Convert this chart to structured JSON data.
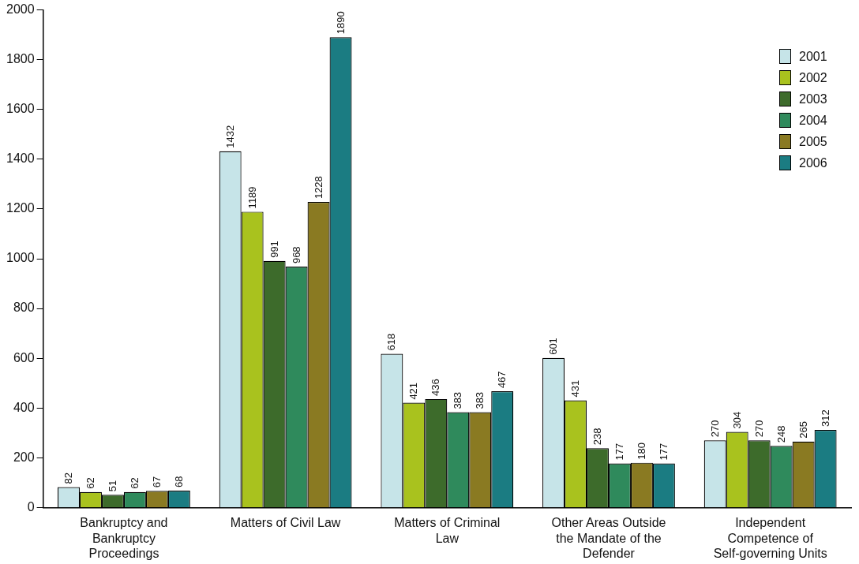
{
  "chart_data": {
    "type": "bar",
    "categories": [
      "Bankruptcy and Bankruptcy Proceedings",
      "Matters of Civil Law",
      "Matters of Criminal Law",
      "Other Areas Outside the Mandate of the Defender",
      "Independent Competence of Self-governing Units"
    ],
    "series": [
      {
        "name": "2001",
        "color": "#c6e4e8",
        "values": [
          82,
          1432,
          618,
          601,
          270
        ]
      },
      {
        "name": "2002",
        "color": "#a9c21e",
        "values": [
          62,
          1189,
          421,
          431,
          304
        ]
      },
      {
        "name": "2003",
        "color": "#3d6b2b",
        "values": [
          51,
          991,
          436,
          238,
          270
        ]
      },
      {
        "name": "2004",
        "color": "#2f8a5c",
        "values": [
          62,
          968,
          383,
          177,
          248
        ]
      },
      {
        "name": "2005",
        "color": "#8a7a22",
        "values": [
          67,
          1228,
          383,
          180,
          265
        ]
      },
      {
        "name": "2006",
        "color": "#1b7c82",
        "values": [
          68,
          1890,
          467,
          177,
          312
        ]
      }
    ],
    "ylim": [
      0,
      2000
    ],
    "yticks": [
      0,
      200,
      400,
      600,
      800,
      1000,
      1200,
      1400,
      1600,
      1800,
      2000
    ],
    "grid": false,
    "legend": "top right",
    "data_labels": true
  }
}
